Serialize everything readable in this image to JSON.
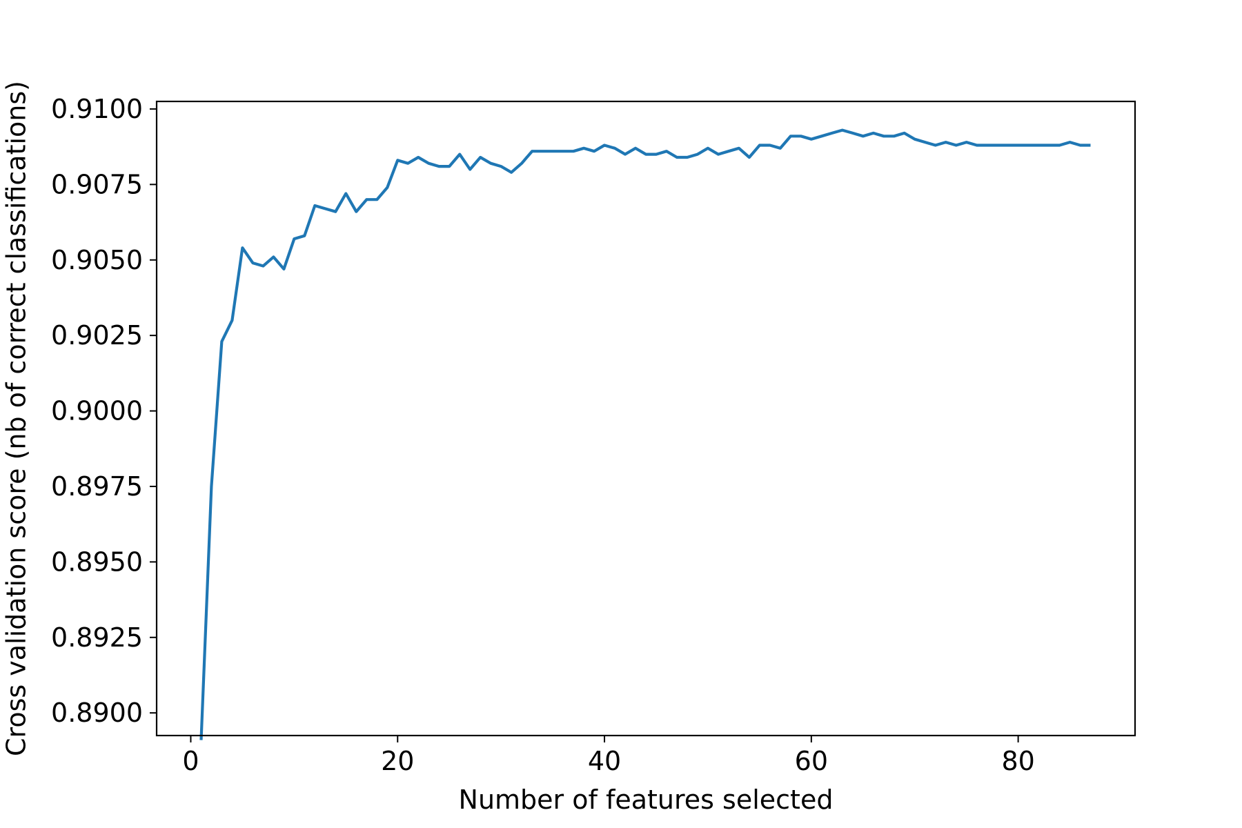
{
  "chart_data": {
    "type": "line",
    "title": "",
    "xlabel": "Number of features selected",
    "ylabel": "Cross validation score (nb of correct classifications)",
    "xlim": [
      -3.3,
      91.3
    ],
    "ylim": [
      0.88925,
      0.91025
    ],
    "xticks": [
      0,
      20,
      40,
      60,
      80
    ],
    "xtick_labels": [
      "0",
      "20",
      "40",
      "60",
      "80"
    ],
    "yticks": [
      0.89,
      0.8925,
      0.895,
      0.8975,
      0.9,
      0.9025,
      0.905,
      0.9075,
      0.91
    ],
    "ytick_labels": [
      "0.8900",
      "0.8925",
      "0.8950",
      "0.8975",
      "0.9000",
      "0.9025",
      "0.9050",
      "0.9075",
      "0.9100"
    ],
    "grid": false,
    "line_color": "#1f77b4",
    "series": [
      {
        "x": [
          1,
          2,
          3,
          4,
          5,
          6,
          7,
          8,
          9,
          10,
          11,
          12,
          13,
          14,
          15,
          16,
          17,
          18,
          19,
          20,
          21,
          22,
          23,
          24,
          25,
          26,
          27,
          28,
          29,
          30,
          31,
          32,
          33,
          34,
          35,
          36,
          37,
          38,
          39,
          40,
          41,
          42,
          43,
          44,
          45,
          46,
          47,
          48,
          49,
          50,
          51,
          52,
          53,
          54,
          55,
          56,
          57,
          58,
          59,
          60,
          61,
          62,
          63,
          64,
          65,
          66,
          67,
          68,
          69,
          70,
          71,
          72,
          73,
          74,
          75,
          76,
          77,
          78,
          79,
          80,
          81,
          82,
          83,
          84,
          85,
          86,
          87
        ],
        "y": [
          0.8891,
          0.8975,
          0.9023,
          0.903,
          0.9054,
          0.9049,
          0.9048,
          0.9051,
          0.9047,
          0.9057,
          0.9058,
          0.9068,
          0.9067,
          0.9066,
          0.9072,
          0.9066,
          0.907,
          0.907,
          0.9074,
          0.9083,
          0.9082,
          0.9084,
          0.9082,
          0.9081,
          0.9081,
          0.9085,
          0.908,
          0.9084,
          0.9082,
          0.9081,
          0.9079,
          0.9082,
          0.9086,
          0.9086,
          0.9086,
          0.9086,
          0.9086,
          0.9087,
          0.9086,
          0.9088,
          0.9087,
          0.9085,
          0.9087,
          0.9085,
          0.9085,
          0.9086,
          0.9084,
          0.9084,
          0.9085,
          0.9087,
          0.9085,
          0.9086,
          0.9087,
          0.9084,
          0.9088,
          0.9088,
          0.9087,
          0.9091,
          0.9091,
          0.909,
          0.9091,
          0.9092,
          0.9093,
          0.9092,
          0.9091,
          0.9092,
          0.9091,
          0.9091,
          0.9092,
          0.909,
          0.9089,
          0.9088,
          0.9089,
          0.9088,
          0.9089,
          0.9088,
          0.9088,
          0.9088,
          0.9088,
          0.9088,
          0.9088,
          0.9088,
          0.9088,
          0.9088,
          0.9089,
          0.9088,
          0.9088
        ]
      }
    ]
  }
}
